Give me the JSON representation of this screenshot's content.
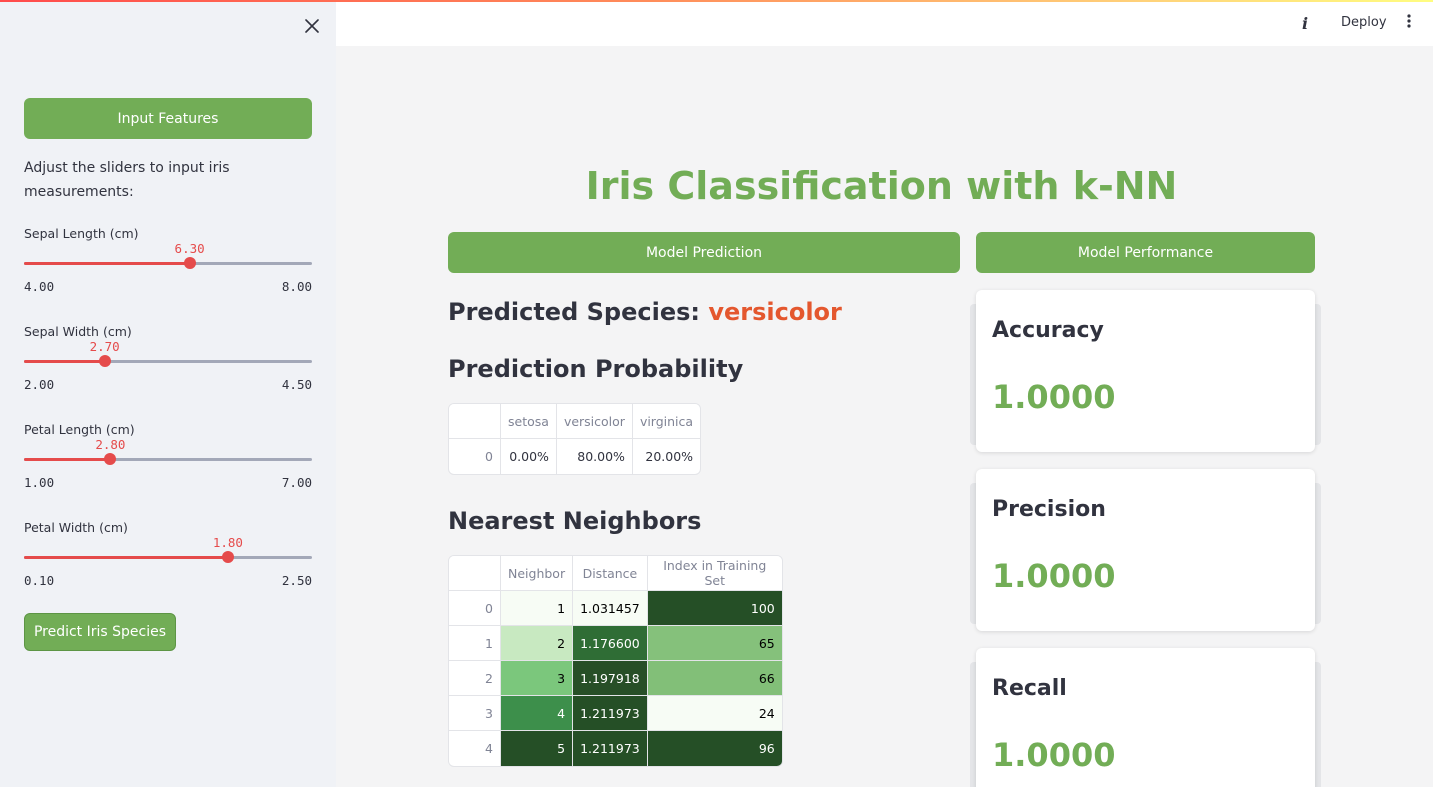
{
  "header": {
    "deploy_label": "Deploy",
    "info_icon": "info-icon",
    "menu_icon": "kebab-menu-icon"
  },
  "sidebar": {
    "close_icon": "close-icon",
    "section_label": "Input Features",
    "description": "Adjust the sliders to input iris measurements:",
    "sliders": [
      {
        "label": "Sepal Length (cm)",
        "value": "6.30",
        "min": "4.00",
        "max": "8.00",
        "fraction": 0.575
      },
      {
        "label": "Sepal Width (cm)",
        "value": "2.70",
        "min": "2.00",
        "max": "4.50",
        "fraction": 0.28
      },
      {
        "label": "Petal Length (cm)",
        "value": "2.80",
        "min": "1.00",
        "max": "7.00",
        "fraction": 0.3
      },
      {
        "label": "Petal Width (cm)",
        "value": "1.80",
        "min": "0.10",
        "max": "2.50",
        "fraction": 0.708
      }
    ],
    "predict_label": "Predict Iris Species"
  },
  "main": {
    "title": "Iris Classification with k-NN",
    "prediction_section": "Model Prediction",
    "performance_section": "Model Performance",
    "predicted_prefix": "Predicted Species: ",
    "predicted_species": "versicolor",
    "probability_heading": "Prediction Probability",
    "probability_table": {
      "columns": [
        "",
        "setosa",
        "versicolor",
        "virginica"
      ],
      "rows": [
        [
          "0",
          "0.00%",
          "80.00%",
          "20.00%"
        ]
      ]
    },
    "neighbors_heading": "Nearest Neighbors",
    "neighbors_table": {
      "columns": [
        "",
        "Neighbor",
        "Distance",
        "Index in Training Set"
      ],
      "rows": [
        [
          "0",
          "1",
          "1.031457",
          "100"
        ],
        [
          "1",
          "2",
          "1.176600",
          "65"
        ],
        [
          "2",
          "3",
          "1.197918",
          "66"
        ],
        [
          "3",
          "4",
          "1.211973",
          "24"
        ],
        [
          "4",
          "5",
          "1.211973",
          "96"
        ]
      ],
      "colors": {
        "neighbor": [
          "#f7fcf5",
          "#c8e9c1",
          "#7bc77c",
          "#3d8f4b",
          "#254f26"
        ],
        "distance": [
          "#f7fcf5",
          "#2f6d35",
          "#274f27",
          "#254f26",
          "#254f26"
        ],
        "index": [
          "#254f26",
          "#85c17b",
          "#82bf78",
          "#f7fcf5",
          "#254f26"
        ]
      }
    },
    "metrics": [
      {
        "label": "Accuracy",
        "value": "1.0000"
      },
      {
        "label": "Precision",
        "value": "1.0000"
      },
      {
        "label": "Recall",
        "value": "1.0000"
      }
    ]
  }
}
